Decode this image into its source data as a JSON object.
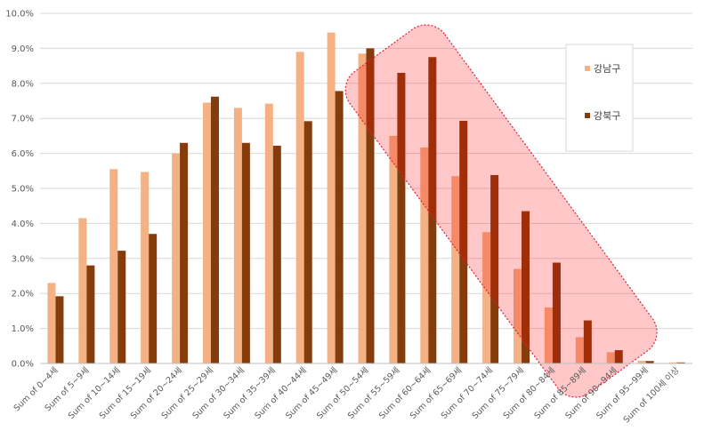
{
  "chart_data": {
    "type": "bar",
    "categories": [
      "Sum of 0~4세",
      "Sum of 5~9세",
      "Sum of 10~14세",
      "Sum of 15~19세",
      "Sum of 20~24세",
      "Sum of 25~29세",
      "Sum of 30~34세",
      "Sum of 35~39세",
      "Sum of 40~44세",
      "Sum of 45~49세",
      "Sum of 50~54세",
      "Sum of 55~59세",
      "Sum of 60~64세",
      "Sum of 65~69세",
      "Sum of 70~74세",
      "Sum of 75~79세",
      "Sum of 80~84세",
      "Sum of 85~89세",
      "Sum of 90~94세",
      "Sum of 95~99세",
      "Sum of 100세 이상"
    ],
    "series": [
      {
        "name": "강남구",
        "color": "#f4b183",
        "values": [
          2.3,
          4.15,
          5.55,
          5.47,
          6.0,
          7.45,
          7.3,
          7.42,
          8.9,
          9.45,
          8.85,
          6.5,
          6.17,
          5.35,
          3.75,
          2.7,
          1.6,
          0.75,
          0.32,
          0.08,
          0.03
        ]
      },
      {
        "name": "강북구",
        "color": "#843c0c",
        "values": [
          1.92,
          2.8,
          3.22,
          3.7,
          6.3,
          7.62,
          6.3,
          6.22,
          6.92,
          7.78,
          9.0,
          8.3,
          8.75,
          6.93,
          5.38,
          4.35,
          2.88,
          1.23,
          0.38,
          0.07,
          0.03
        ]
      }
    ],
    "yticks": [
      "0.0%",
      "1.0%",
      "2.0%",
      "3.0%",
      "4.0%",
      "5.0%",
      "6.0%",
      "7.0%",
      "8.0%",
      "9.0%",
      "10.0%"
    ],
    "ylim": [
      0,
      10
    ],
    "grid": true,
    "legend_position": "top-right",
    "highlight": {
      "shape": "rounded-rectangle",
      "color": "#ff0000",
      "from_category": "Sum of 55~59세",
      "to_category": "Sum of 85~89세"
    }
  }
}
